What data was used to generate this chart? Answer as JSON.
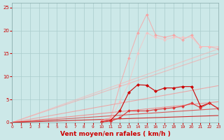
{
  "bg_color": "#cce8e8",
  "grid_color": "#aacccc",
  "xlabel": "Vent moyen/en rafales ( km/h )",
  "xlabel_color": "#cc0000",
  "xlabel_fontsize": 6.5,
  "xtick_color": "#cc0000",
  "ytick_color": "#cc0000",
  "xmin": 0,
  "xmax": 23,
  "ymin": 0,
  "ymax": 26,
  "yticks": [
    0,
    5,
    10,
    15,
    20,
    25
  ],
  "xticks": [
    0,
    1,
    2,
    3,
    4,
    5,
    6,
    7,
    8,
    9,
    10,
    11,
    12,
    13,
    14,
    15,
    16,
    17,
    18,
    19,
    20,
    21,
    22,
    23
  ],
  "lines": [
    {
      "x": [
        0,
        23
      ],
      "y": [
        0,
        16.0
      ],
      "color": "#ffaaaa",
      "lw": 0.8,
      "marker": null,
      "alpha": 0.55
    },
    {
      "x": [
        0,
        23
      ],
      "y": [
        0,
        15.0
      ],
      "color": "#ff9999",
      "lw": 0.8,
      "marker": null,
      "alpha": 0.55
    },
    {
      "x": [
        0,
        23
      ],
      "y": [
        0,
        8.0
      ],
      "color": "#ff8080",
      "lw": 0.8,
      "marker": null,
      "alpha": 0.6
    },
    {
      "x": [
        0,
        23
      ],
      "y": [
        0,
        4.5
      ],
      "color": "#ff6666",
      "lw": 0.8,
      "marker": null,
      "alpha": 0.65
    },
    {
      "x": [
        0,
        23
      ],
      "y": [
        0,
        3.0
      ],
      "color": "#dd2222",
      "lw": 0.8,
      "marker": null,
      "alpha": 0.7
    },
    {
      "x": [
        0,
        23
      ],
      "y": [
        0,
        1.5
      ],
      "color": "#cc0000",
      "lw": 0.8,
      "marker": null,
      "alpha": 0.8
    },
    {
      "x": [
        10,
        11,
        12,
        13,
        14,
        15,
        16,
        17,
        18,
        19,
        20,
        21,
        22,
        23
      ],
      "y": [
        0.5,
        1.0,
        8.0,
        14.0,
        19.5,
        23.5,
        19.0,
        18.5,
        19.0,
        18.0,
        19.0,
        16.5,
        16.5,
        16.0
      ],
      "color": "#ff9999",
      "lw": 0.7,
      "marker": "D",
      "markersize": 2.0,
      "alpha": 0.75
    },
    {
      "x": [
        10,
        11,
        12,
        13,
        14,
        15,
        16,
        17,
        18,
        19,
        20,
        21,
        22,
        23
      ],
      "y": [
        0.3,
        0.8,
        4.5,
        8.5,
        15.0,
        19.5,
        18.5,
        18.0,
        18.5,
        18.5,
        18.5,
        16.5,
        16.5,
        16.5
      ],
      "color": "#ffbbbb",
      "lw": 0.7,
      "marker": "D",
      "markersize": 2.0,
      "alpha": 0.65
    },
    {
      "x": [
        10,
        11,
        12,
        13,
        14,
        15,
        16,
        17,
        18,
        19,
        20,
        21,
        22,
        23
      ],
      "y": [
        0.2,
        0.5,
        2.5,
        6.5,
        8.2,
        8.1,
        6.8,
        7.5,
        7.5,
        7.8,
        7.8,
        3.5,
        4.2,
        3.0
      ],
      "color": "#cc0000",
      "lw": 0.8,
      "marker": "D",
      "markersize": 2.2,
      "alpha": 1.0
    },
    {
      "x": [
        10,
        11,
        12,
        13,
        14,
        15,
        16,
        17,
        18,
        19,
        20,
        21,
        22,
        23
      ],
      "y": [
        0.1,
        0.3,
        1.0,
        2.5,
        2.5,
        2.5,
        2.8,
        3.0,
        3.2,
        3.5,
        4.2,
        3.2,
        4.2,
        3.0
      ],
      "color": "#dd3333",
      "lw": 0.8,
      "marker": "D",
      "markersize": 2.0,
      "alpha": 1.0
    }
  ]
}
